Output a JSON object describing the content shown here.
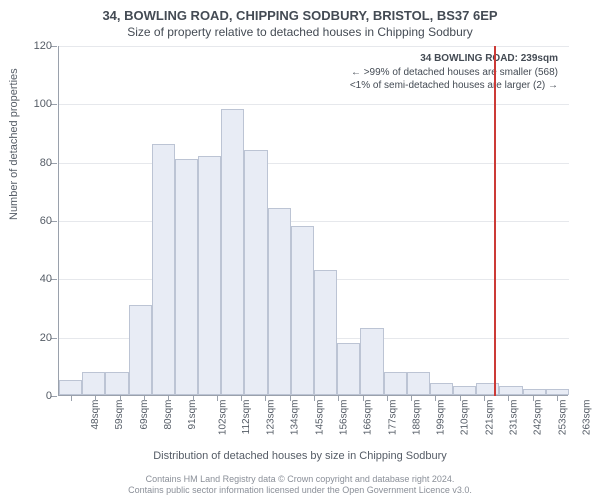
{
  "titles": {
    "main": "34, BOWLING ROAD, CHIPPING SODBURY, BRISTOL, BS37 6EP",
    "sub": "Size of property relative to detached houses in Chipping Sodbury"
  },
  "chart": {
    "type": "histogram",
    "y_axis_title": "Number of detached properties",
    "x_axis_title": "Distribution of detached houses by size in Chipping Sodbury",
    "ylim": [
      0,
      120
    ],
    "ytick_step": 20,
    "y_ticks": [
      0,
      20,
      40,
      60,
      80,
      100,
      120
    ],
    "bar_fill": "#e8ecf5",
    "bar_border": "#bcc4d4",
    "grid_color": "#e6e8ec",
    "axis_color": "#9aa1ac",
    "background_color": "#ffffff",
    "marker_color": "#cc3a36",
    "marker_x_index": 17.9,
    "x_labels": [
      "48sqm",
      "59sqm",
      "69sqm",
      "80sqm",
      "91sqm",
      "102sqm",
      "112sqm",
      "123sqm",
      "134sqm",
      "145sqm",
      "156sqm",
      "166sqm",
      "177sqm",
      "188sqm",
      "199sqm",
      "210sqm",
      "221sqm",
      "231sqm",
      "242sqm",
      "253sqm",
      "263sqm"
    ],
    "values": [
      5,
      8,
      8,
      31,
      86,
      81,
      82,
      98,
      84,
      64,
      58,
      43,
      18,
      23,
      8,
      8,
      4,
      3,
      4,
      3,
      2,
      2
    ],
    "label_fontsize": 11,
    "tick_fontsize": 10
  },
  "annotation": {
    "line1": "34 BOWLING ROAD: 239sqm",
    "line2": "← >99% of detached houses are smaller (568)",
    "line3": "<1% of semi-detached houses are larger (2) →"
  },
  "footer": {
    "line1": "Contains HM Land Registry data © Crown copyright and database right 2024.",
    "line2": "Contains public sector information licensed under the Open Government Licence v3.0."
  }
}
